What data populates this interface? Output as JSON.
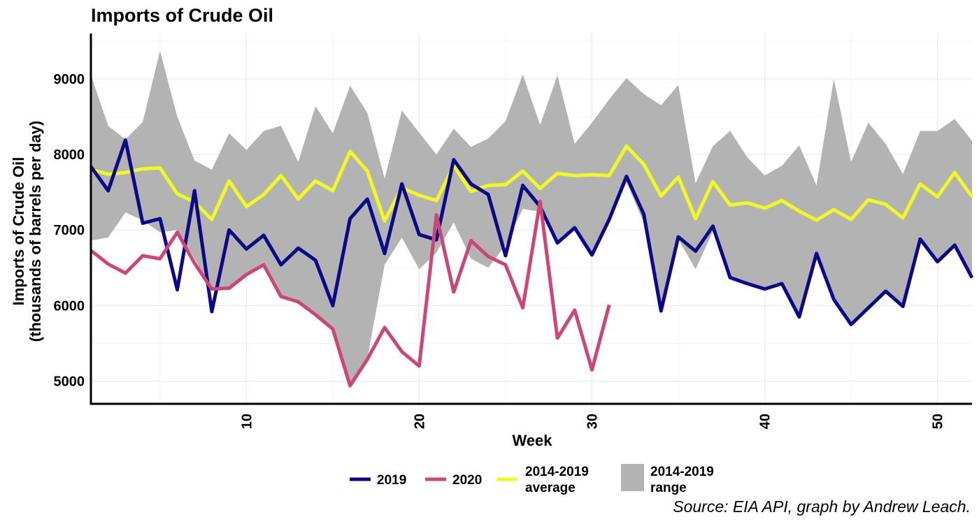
{
  "chart_data": {
    "type": "line",
    "title": "Imports of Crude Oil",
    "xlabel": "Week",
    "ylabel_line1": "Imports of Crude Oil",
    "ylabel_line2": "(thousands of barrels per day)",
    "caption": "Source: EIA API, graph by Andrew Leach.",
    "xlim": [
      1,
      52
    ],
    "ylim": [
      4700,
      9600
    ],
    "x_ticks": [
      10,
      20,
      30,
      40,
      50
    ],
    "y_ticks": [
      5000,
      6000,
      7000,
      8000,
      9000
    ],
    "grid": true,
    "legend_position": "bottom",
    "range": {
      "name": "2014-2019 range",
      "color": "#b3b3b3",
      "x": [
        1,
        2,
        3,
        4,
        5,
        6,
        7,
        8,
        9,
        10,
        11,
        12,
        13,
        14,
        15,
        16,
        17,
        18,
        19,
        20,
        21,
        22,
        23,
        24,
        25,
        26,
        27,
        28,
        29,
        30,
        31,
        32,
        33,
        34,
        35,
        36,
        37,
        38,
        39,
        40,
        41,
        42,
        43,
        44,
        45,
        46,
        47,
        48,
        49,
        50,
        51,
        52
      ],
      "upper": [
        9050,
        8380,
        8200,
        8430,
        9370,
        8500,
        7920,
        7800,
        8280,
        8060,
        8310,
        8380,
        7900,
        8640,
        8280,
        8910,
        8550,
        7680,
        8580,
        8290,
        8000,
        8340,
        8100,
        8210,
        8440,
        9060,
        8390,
        9050,
        8140,
        8420,
        8730,
        9010,
        8800,
        8650,
        8920,
        7620,
        8110,
        8310,
        7960,
        7720,
        7850,
        8120,
        7590,
        9000,
        7900,
        8420,
        8140,
        7740,
        8310,
        8310,
        8470,
        8180
      ],
      "lower": [
        6860,
        6900,
        7230,
        7130,
        6970,
        7000,
        6620,
        6210,
        6240,
        6390,
        6520,
        6120,
        6050,
        5890,
        5690,
        4950,
        5300,
        6540,
        6900,
        6480,
        6700,
        7100,
        6620,
        6500,
        6800,
        7280,
        7240,
        6830,
        7050,
        6660,
        7100,
        7630,
        7100,
        5930,
        6880,
        6480,
        6980,
        6370,
        6290,
        6220,
        6280,
        5840,
        6680,
        6080,
        5730,
        5960,
        6170,
        5980,
        6860,
        6570,
        6800,
        6360
      ]
    },
    "series": [
      {
        "name": "2019",
        "color": "#0d0887",
        "x": [
          1,
          2,
          3,
          4,
          5,
          6,
          7,
          8,
          9,
          10,
          11,
          12,
          13,
          14,
          15,
          16,
          17,
          18,
          19,
          20,
          21,
          22,
          23,
          24,
          25,
          26,
          27,
          28,
          29,
          30,
          31,
          32,
          33,
          34,
          35,
          36,
          37,
          38,
          39,
          40,
          41,
          42,
          43,
          44,
          45,
          46,
          47,
          48,
          49,
          50,
          51,
          52
        ],
        "values": [
          7840,
          7520,
          8190,
          7090,
          7150,
          6210,
          7520,
          5920,
          7000,
          6750,
          6930,
          6540,
          6760,
          6600,
          6000,
          7150,
          7410,
          6690,
          7610,
          6940,
          6870,
          7930,
          7610,
          7470,
          6660,
          7590,
          7310,
          6830,
          7030,
          6670,
          7140,
          7710,
          7210,
          5930,
          6910,
          6720,
          7050,
          6370,
          6290,
          6220,
          6290,
          5850,
          6690,
          6080,
          5750,
          5970,
          6190,
          5990,
          6880,
          6580,
          6800,
          6370
        ]
      },
      {
        "name": "2020",
        "color": "#cc4778",
        "x": [
          1,
          2,
          3,
          4,
          5,
          6,
          7,
          8,
          9,
          10,
          11,
          12,
          13,
          14,
          15,
          16,
          17,
          18,
          19,
          20,
          21,
          22,
          23,
          24,
          25,
          26,
          27,
          28,
          29,
          30,
          31
        ],
        "values": [
          6730,
          6550,
          6430,
          6660,
          6620,
          6970,
          6560,
          6220,
          6230,
          6410,
          6540,
          6120,
          6050,
          5880,
          5690,
          4940,
          5290,
          5710,
          5390,
          5200,
          7200,
          6180,
          6860,
          6650,
          6540,
          5970,
          7380,
          5570,
          5940,
          5150,
          6010
        ]
      },
      {
        "name": "2014-2019 average",
        "color": "#f0f921",
        "x": [
          1,
          2,
          3,
          4,
          5,
          6,
          7,
          8,
          9,
          10,
          11,
          12,
          13,
          14,
          15,
          16,
          17,
          18,
          19,
          20,
          21,
          22,
          23,
          24,
          25,
          26,
          27,
          28,
          29,
          30,
          31,
          32,
          33,
          34,
          35,
          36,
          37,
          38,
          39,
          40,
          41,
          42,
          43,
          44,
          45,
          46,
          47,
          48,
          49,
          50,
          51,
          52
        ],
        "values": [
          7800,
          7740,
          7760,
          7810,
          7820,
          7480,
          7370,
          7140,
          7650,
          7310,
          7470,
          7720,
          7410,
          7650,
          7520,
          8040,
          7780,
          7120,
          7560,
          7460,
          7390,
          7850,
          7510,
          7590,
          7600,
          7780,
          7550,
          7750,
          7720,
          7730,
          7720,
          8110,
          7870,
          7450,
          7700,
          7150,
          7640,
          7330,
          7360,
          7290,
          7390,
          7250,
          7130,
          7270,
          7140,
          7400,
          7340,
          7160,
          7610,
          7440,
          7760,
          7440
        ]
      }
    ],
    "legend": {
      "items": [
        {
          "line1": "2019",
          "line2": ""
        },
        {
          "line1": "2020",
          "line2": ""
        },
        {
          "line1": "2014-2019",
          "line2": "average"
        },
        {
          "line1": "2014-2019",
          "line2": "range"
        }
      ]
    }
  }
}
